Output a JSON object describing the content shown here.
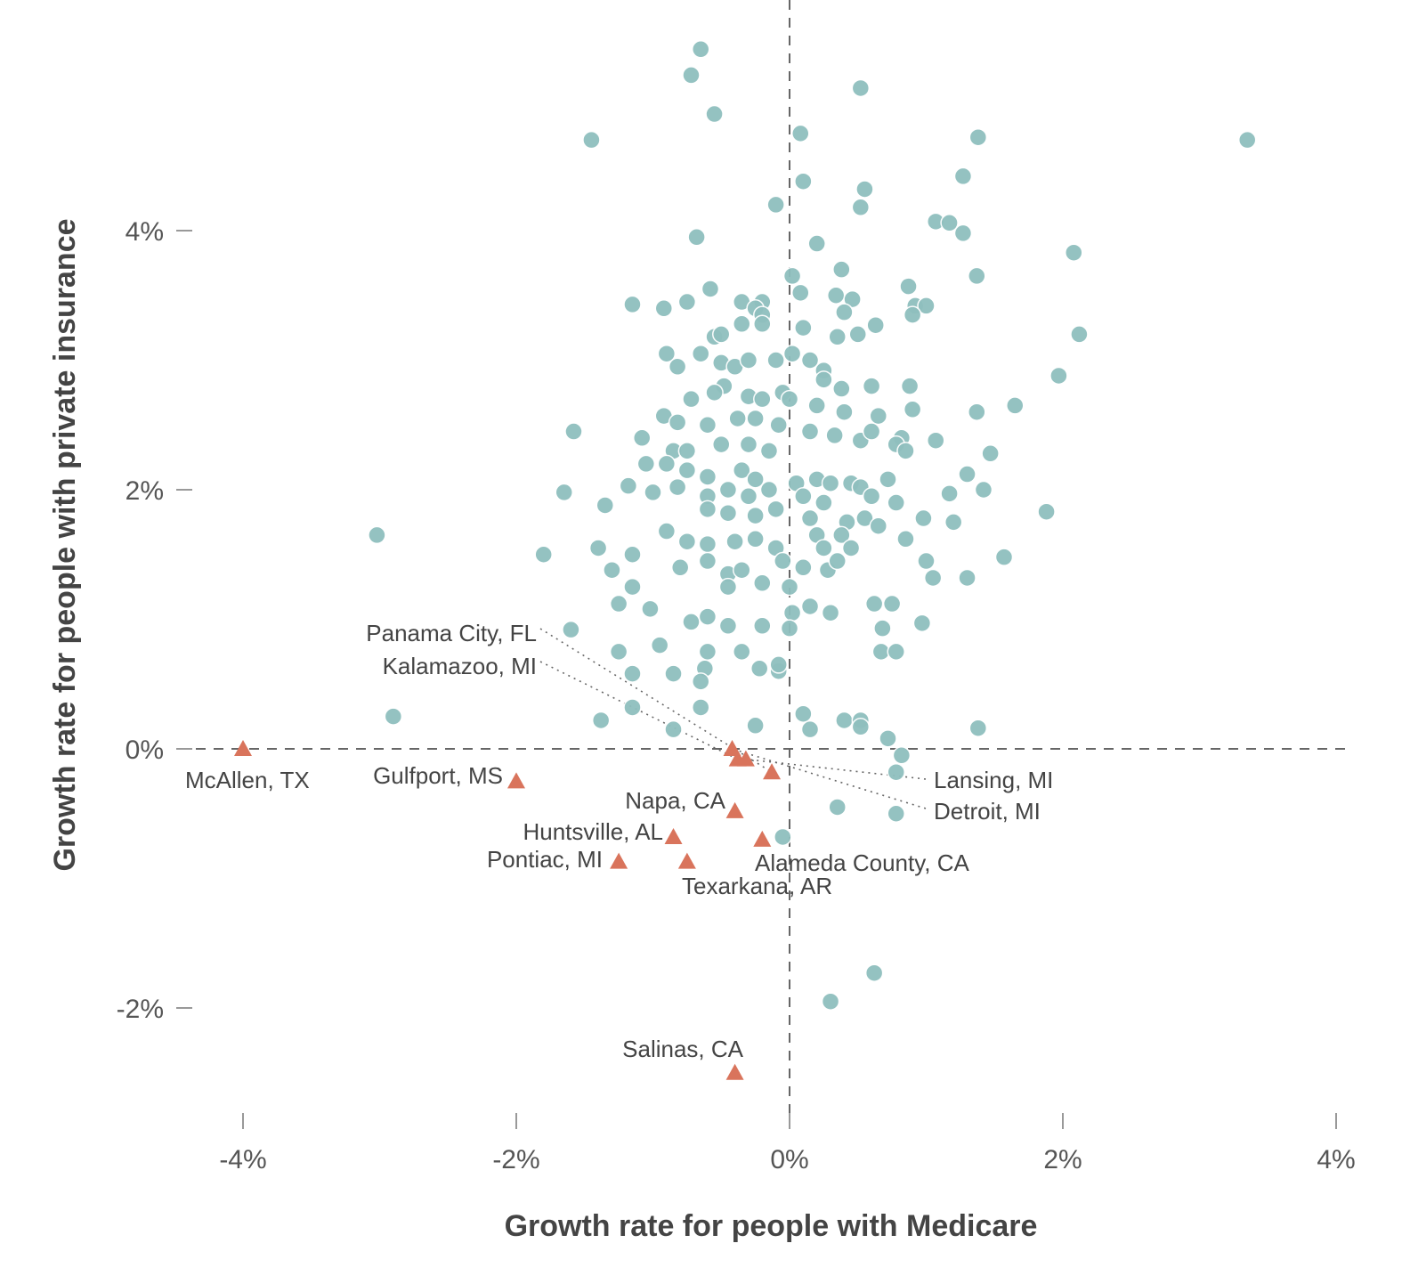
{
  "chart_data": {
    "type": "scatter",
    "xlabel": "Growth rate for people with Medicare",
    "ylabel": "Growth rate for people with private insurance",
    "xlim": [
      -4.0,
      4.0
    ],
    "ylim": [
      -2.7,
      5.8
    ],
    "x_ticks": [
      {
        "value": -4,
        "label": "-4%"
      },
      {
        "value": -2,
        "label": "-2%"
      },
      {
        "value": 0,
        "label": "0%"
      },
      {
        "value": 2,
        "label": "2%"
      },
      {
        "value": 4,
        "label": "4%"
      }
    ],
    "y_ticks": [
      {
        "value": -2,
        "label": "-2%"
      },
      {
        "value": 0,
        "label": "0%"
      },
      {
        "value": 2,
        "label": "2%"
      },
      {
        "value": 4,
        "label": "4%"
      }
    ],
    "reference_lines": {
      "x": 0,
      "y": 0,
      "style": "dashed"
    },
    "grid": false,
    "legend": "none",
    "colors": {
      "circles": "#8fbfbe",
      "triangles": "#d9745c",
      "ref_line": "#666666",
      "leader": "#666666"
    },
    "series": [
      {
        "marker": "circle",
        "points": [
          [
            -0.65,
            5.4
          ],
          [
            -0.72,
            5.2
          ],
          [
            -0.55,
            4.9
          ],
          [
            -1.45,
            4.7
          ],
          [
            0.52,
            5.1
          ],
          [
            0.08,
            4.75
          ],
          [
            1.38,
            4.72
          ],
          [
            3.35,
            4.7
          ],
          [
            0.1,
            4.38
          ],
          [
            0.55,
            4.32
          ],
          [
            -0.1,
            4.2
          ],
          [
            0.52,
            4.18
          ],
          [
            1.27,
            4.42
          ],
          [
            1.07,
            4.07
          ],
          [
            1.17,
            4.06
          ],
          [
            1.27,
            3.98
          ],
          [
            -0.68,
            3.95
          ],
          [
            0.2,
            3.9
          ],
          [
            2.08,
            3.83
          ],
          [
            0.02,
            3.65
          ],
          [
            0.38,
            3.7
          ],
          [
            1.37,
            3.65
          ],
          [
            -0.58,
            3.55
          ],
          [
            -0.75,
            3.45
          ],
          [
            -1.15,
            3.43
          ],
          [
            -0.92,
            3.4
          ],
          [
            -0.35,
            3.45
          ],
          [
            -0.2,
            3.45
          ],
          [
            -0.25,
            3.4
          ],
          [
            -0.2,
            3.35
          ],
          [
            0.08,
            3.52
          ],
          [
            0.34,
            3.5
          ],
          [
            0.46,
            3.47
          ],
          [
            0.87,
            3.57
          ],
          [
            0.92,
            3.42
          ],
          [
            1.0,
            3.42
          ],
          [
            0.9,
            3.35
          ],
          [
            0.4,
            3.37
          ],
          [
            -0.35,
            3.28
          ],
          [
            -0.2,
            3.28
          ],
          [
            0.1,
            3.25
          ],
          [
            0.63,
            3.27
          ],
          [
            0.5,
            3.2
          ],
          [
            0.35,
            3.18
          ],
          [
            2.12,
            3.2
          ],
          [
            -0.55,
            3.18
          ],
          [
            -0.5,
            3.2
          ],
          [
            -0.65,
            3.05
          ],
          [
            -0.9,
            3.05
          ],
          [
            -0.82,
            2.95
          ],
          [
            -0.5,
            2.98
          ],
          [
            -0.4,
            2.95
          ],
          [
            -0.3,
            3.0
          ],
          [
            -0.1,
            3.0
          ],
          [
            0.02,
            3.05
          ],
          [
            0.15,
            3.0
          ],
          [
            0.25,
            2.92
          ],
          [
            0.25,
            2.85
          ],
          [
            0.38,
            2.78
          ],
          [
            0.6,
            2.8
          ],
          [
            0.88,
            2.8
          ],
          [
            1.97,
            2.88
          ],
          [
            -0.48,
            2.8
          ],
          [
            -0.55,
            2.75
          ],
          [
            -0.72,
            2.7
          ],
          [
            -0.3,
            2.72
          ],
          [
            -0.2,
            2.7
          ],
          [
            -0.05,
            2.75
          ],
          [
            0.0,
            2.7
          ],
          [
            0.2,
            2.65
          ],
          [
            0.4,
            2.6
          ],
          [
            0.65,
            2.57
          ],
          [
            0.9,
            2.62
          ],
          [
            1.37,
            2.6
          ],
          [
            1.65,
            2.65
          ],
          [
            -0.92,
            2.57
          ],
          [
            -0.82,
            2.52
          ],
          [
            -0.6,
            2.5
          ],
          [
            -0.38,
            2.55
          ],
          [
            -0.25,
            2.55
          ],
          [
            -0.08,
            2.5
          ],
          [
            0.15,
            2.45
          ],
          [
            0.33,
            2.42
          ],
          [
            0.52,
            2.38
          ],
          [
            0.6,
            2.45
          ],
          [
            0.82,
            2.4
          ],
          [
            0.78,
            2.35
          ],
          [
            1.07,
            2.38
          ],
          [
            -1.58,
            2.45
          ],
          [
            -1.08,
            2.4
          ],
          [
            -0.85,
            2.3
          ],
          [
            -0.75,
            2.3
          ],
          [
            -0.5,
            2.35
          ],
          [
            -0.3,
            2.35
          ],
          [
            -0.15,
            2.3
          ],
          [
            0.85,
            2.3
          ],
          [
            1.47,
            2.28
          ],
          [
            -1.05,
            2.2
          ],
          [
            -0.9,
            2.2
          ],
          [
            -0.75,
            2.15
          ],
          [
            -0.6,
            2.1
          ],
          [
            -0.35,
            2.15
          ],
          [
            -0.25,
            2.08
          ],
          [
            0.05,
            2.05
          ],
          [
            0.2,
            2.08
          ],
          [
            0.3,
            2.05
          ],
          [
            0.45,
            2.05
          ],
          [
            0.52,
            2.02
          ],
          [
            0.72,
            2.08
          ],
          [
            1.3,
            2.12
          ],
          [
            -1.65,
            1.98
          ],
          [
            -1.18,
            2.03
          ],
          [
            -1.0,
            1.98
          ],
          [
            -0.82,
            2.02
          ],
          [
            -0.6,
            1.95
          ],
          [
            -0.45,
            2.0
          ],
          [
            -0.3,
            1.95
          ],
          [
            -0.15,
            2.0
          ],
          [
            0.1,
            1.95
          ],
          [
            0.25,
            1.9
          ],
          [
            0.6,
            1.95
          ],
          [
            0.78,
            1.9
          ],
          [
            1.17,
            1.97
          ],
          [
            1.42,
            2.0
          ],
          [
            -1.35,
            1.88
          ],
          [
            -0.6,
            1.85
          ],
          [
            -0.45,
            1.82
          ],
          [
            -0.25,
            1.8
          ],
          [
            -0.1,
            1.85
          ],
          [
            0.15,
            1.78
          ],
          [
            0.42,
            1.75
          ],
          [
            0.55,
            1.78
          ],
          [
            0.65,
            1.72
          ],
          [
            0.98,
            1.78
          ],
          [
            1.2,
            1.75
          ],
          [
            1.88,
            1.83
          ],
          [
            -3.02,
            1.65
          ],
          [
            -1.8,
            1.5
          ],
          [
            -1.4,
            1.55
          ],
          [
            -1.15,
            1.5
          ],
          [
            -0.9,
            1.68
          ],
          [
            -0.75,
            1.6
          ],
          [
            -0.6,
            1.58
          ],
          [
            -0.4,
            1.6
          ],
          [
            -0.25,
            1.62
          ],
          [
            -0.1,
            1.55
          ],
          [
            0.2,
            1.65
          ],
          [
            0.25,
            1.55
          ],
          [
            0.38,
            1.65
          ],
          [
            0.45,
            1.55
          ],
          [
            0.85,
            1.62
          ],
          [
            1.0,
            1.45
          ],
          [
            1.57,
            1.48
          ],
          [
            -1.3,
            1.38
          ],
          [
            -0.8,
            1.4
          ],
          [
            -0.6,
            1.45
          ],
          [
            -0.45,
            1.35
          ],
          [
            -0.35,
            1.38
          ],
          [
            -0.05,
            1.45
          ],
          [
            0.1,
            1.4
          ],
          [
            0.28,
            1.38
          ],
          [
            0.35,
            1.45
          ],
          [
            -1.15,
            1.25
          ],
          [
            -0.45,
            1.25
          ],
          [
            -0.2,
            1.28
          ],
          [
            0.0,
            1.25
          ],
          [
            1.05,
            1.32
          ],
          [
            1.3,
            1.32
          ],
          [
            -1.25,
            1.12
          ],
          [
            -1.02,
            1.08
          ],
          [
            -0.6,
            1.02
          ],
          [
            -0.45,
            0.95
          ],
          [
            0.02,
            1.05
          ],
          [
            0.15,
            1.1
          ],
          [
            0.3,
            1.05
          ],
          [
            0.62,
            1.12
          ],
          [
            0.75,
            1.12
          ],
          [
            -1.6,
            0.92
          ],
          [
            -0.72,
            0.98
          ],
          [
            -0.2,
            0.95
          ],
          [
            0.0,
            0.93
          ],
          [
            0.68,
            0.93
          ],
          [
            0.97,
            0.97
          ],
          [
            -1.25,
            0.75
          ],
          [
            -0.95,
            0.8
          ],
          [
            -0.6,
            0.75
          ],
          [
            -0.35,
            0.75
          ],
          [
            -1.15,
            0.58
          ],
          [
            -0.85,
            0.58
          ],
          [
            -0.62,
            0.62
          ],
          [
            -0.65,
            0.52
          ],
          [
            -0.22,
            0.62
          ],
          [
            -0.08,
            0.6
          ],
          [
            -0.08,
            0.65
          ],
          [
            0.67,
            0.75
          ],
          [
            0.78,
            0.75
          ],
          [
            -2.9,
            0.25
          ],
          [
            -1.38,
            0.22
          ],
          [
            -1.15,
            0.32
          ],
          [
            -0.65,
            0.32
          ],
          [
            -0.85,
            0.15
          ],
          [
            -0.25,
            0.18
          ],
          [
            0.1,
            0.27
          ],
          [
            0.15,
            0.15
          ],
          [
            0.4,
            0.22
          ],
          [
            0.52,
            0.22
          ],
          [
            0.52,
            0.17
          ],
          [
            0.72,
            0.08
          ],
          [
            1.38,
            0.16
          ],
          [
            0.82,
            -0.05
          ],
          [
            0.78,
            -0.18
          ],
          [
            0.35,
            -0.45
          ],
          [
            0.78,
            -0.5
          ],
          [
            -0.05,
            -0.68
          ],
          [
            0.62,
            -1.73
          ],
          [
            0.3,
            -1.95
          ]
        ]
      },
      {
        "marker": "triangle",
        "points": [
          [
            -4.0,
            0.0
          ],
          [
            -2.0,
            -0.25
          ],
          [
            -0.42,
            0.0
          ],
          [
            -0.38,
            -0.08
          ],
          [
            -0.32,
            -0.08
          ],
          [
            -0.13,
            -0.18
          ],
          [
            -0.4,
            -0.48
          ],
          [
            -0.2,
            -0.7
          ],
          [
            -0.85,
            -0.68
          ],
          [
            -1.25,
            -0.87
          ],
          [
            -0.75,
            -0.87
          ],
          [
            -0.4,
            -2.5
          ]
        ]
      }
    ],
    "annotations": [
      {
        "text": "McAllen, TX"
      },
      {
        "text": "Gulfport, MS"
      },
      {
        "text": "Panama City, FL"
      },
      {
        "text": "Kalamazoo, MI"
      },
      {
        "text": "Napa, CA"
      },
      {
        "text": "Huntsville, AL"
      },
      {
        "text": "Pontiac, MI"
      },
      {
        "text": "Alameda County, CA"
      },
      {
        "text": "Texarkana, AR"
      },
      {
        "text": "Lansing, MI"
      },
      {
        "text": "Detroit, MI"
      },
      {
        "text": "Salinas, CA"
      }
    ]
  }
}
